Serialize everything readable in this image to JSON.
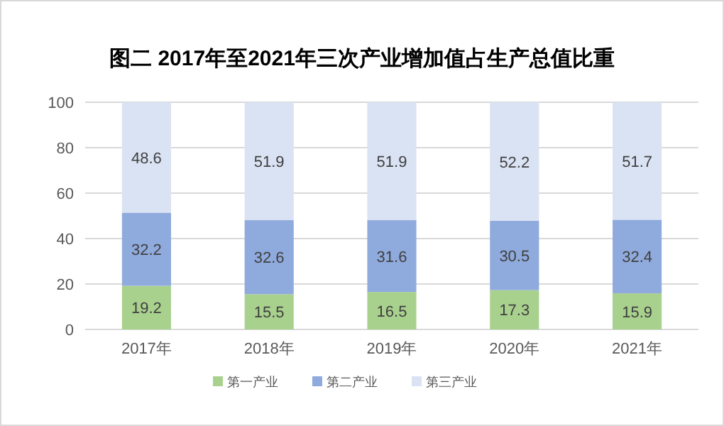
{
  "chart_data": {
    "type": "bar",
    "title": "图二  2017年至2021年三次产业增加值占生产总值比重",
    "categories": [
      "2017年",
      "2018年",
      "2019年",
      "2020年",
      "2021年"
    ],
    "series": [
      {
        "name": "第一产业",
        "color": "#a9d18e",
        "values": [
          19.2,
          15.5,
          16.5,
          17.3,
          15.9
        ]
      },
      {
        "name": "第二产业",
        "color": "#8faadc",
        "values": [
          32.2,
          32.6,
          31.6,
          30.5,
          32.4
        ]
      },
      {
        "name": "第三产业",
        "color": "#dae3f3",
        "values": [
          48.6,
          51.9,
          51.9,
          52.2,
          51.7
        ]
      }
    ],
    "stacked": true,
    "ylim": [
      0,
      100
    ],
    "yticks": [
      0,
      20,
      40,
      60,
      80,
      100
    ],
    "grid": "y",
    "legend": "bottom",
    "data_labels": true
  }
}
